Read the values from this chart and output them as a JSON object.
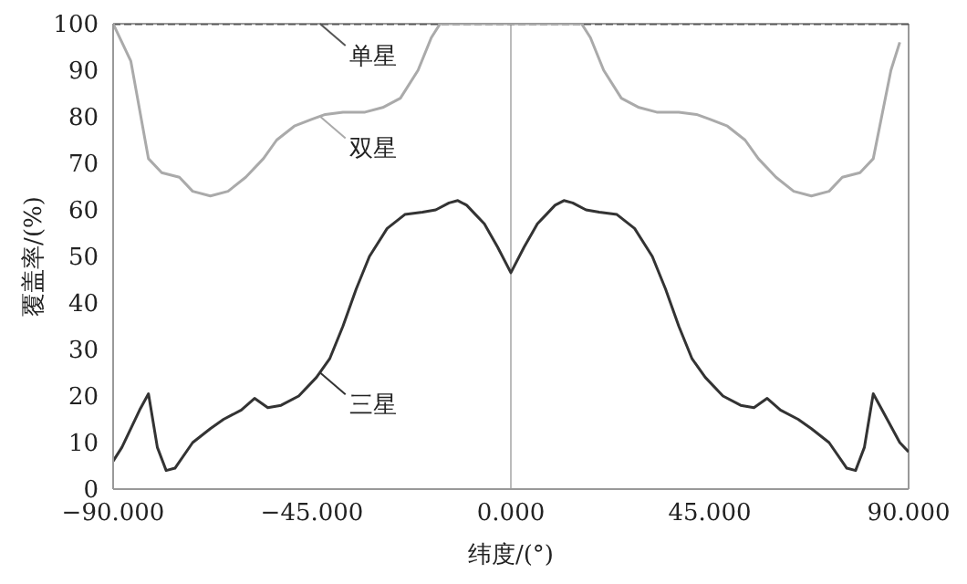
{
  "chart_data": {
    "type": "line",
    "xlabel": "纬度/(°)",
    "ylabel": "覆盖率/(%)",
    "xlim": [
      -90,
      90
    ],
    "xticks": [
      {
        "value": -90,
        "label": "−90.000"
      },
      {
        "value": -45,
        "label": "−45.000"
      },
      {
        "value": 0,
        "label": "0.000"
      },
      {
        "value": 45,
        "label": "45.000"
      },
      {
        "value": 90,
        "label": "90.000"
      }
    ],
    "ylim": [
      0,
      100
    ],
    "yticks": [
      0,
      10,
      20,
      30,
      40,
      50,
      60,
      70,
      80,
      90,
      100
    ],
    "grid": false,
    "legend": "top left",
    "marker": "none",
    "ref_lines": [
      {
        "axis": "x",
        "value": 0,
        "color": "#bbbbbb"
      }
    ],
    "series": [
      {
        "name": "单星",
        "color": "#555555",
        "line_style": "dashed",
        "x": [
          -90,
          90
        ],
        "values": [
          100,
          100
        ]
      },
      {
        "name": "双星",
        "color": "#aaaaaa",
        "line_style": "solid",
        "x": [
          -90,
          -86,
          -82,
          -79,
          -75,
          -72,
          -68,
          -64,
          -60,
          -56,
          -53,
          -49,
          -45,
          -42,
          -38,
          -33,
          -29,
          -25,
          -21,
          -18,
          -16,
          16,
          18,
          21,
          25,
          29,
          33,
          38,
          42,
          45,
          49,
          53,
          56,
          60,
          64,
          68,
          72,
          75,
          79,
          82,
          86,
          88
        ],
        "values": [
          100,
          92,
          71,
          68,
          67,
          64,
          63,
          64,
          67,
          71,
          75,
          78,
          79.5,
          80.5,
          81,
          81,
          82,
          84,
          90,
          97,
          100,
          100,
          97,
          90,
          84,
          82,
          81,
          81,
          80.5,
          79.5,
          78,
          75,
          71,
          67,
          64,
          63,
          64,
          67,
          68,
          71,
          90,
          96
        ]
      },
      {
        "name": "三星",
        "color": "#333333",
        "line_style": "solid",
        "x": [
          -90,
          -88,
          -84,
          -82,
          -80,
          -78,
          -76,
          -72,
          -68,
          -65,
          -61,
          -58,
          -55,
          -52,
          -48,
          -44,
          -41,
          -38,
          -35,
          -32,
          -28,
          -24,
          -20,
          -17,
          -14,
          -12,
          -10,
          -8,
          -6,
          -3,
          0,
          3,
          6,
          8,
          10,
          12,
          14,
          17,
          20,
          24,
          28,
          32,
          35,
          38,
          41,
          44,
          48,
          52,
          55,
          58,
          61,
          65,
          68,
          72,
          76,
          78,
          80,
          82,
          84,
          88,
          90
        ],
        "values": [
          6,
          9,
          17,
          20.5,
          9,
          4,
          4.5,
          10,
          13,
          15,
          17,
          19.5,
          17.5,
          18,
          20,
          24,
          28,
          35,
          43,
          50,
          56,
          59,
          59.5,
          60,
          61.5,
          62,
          61,
          59,
          57,
          52,
          46.5,
          52,
          57,
          59,
          61,
          62,
          61.5,
          60,
          59.5,
          59,
          56,
          50,
          43,
          35,
          28,
          24,
          20,
          18,
          17.5,
          19.5,
          17,
          15,
          13,
          10,
          4.5,
          4,
          9,
          20.5,
          17,
          10,
          8
        ]
      }
    ]
  }
}
